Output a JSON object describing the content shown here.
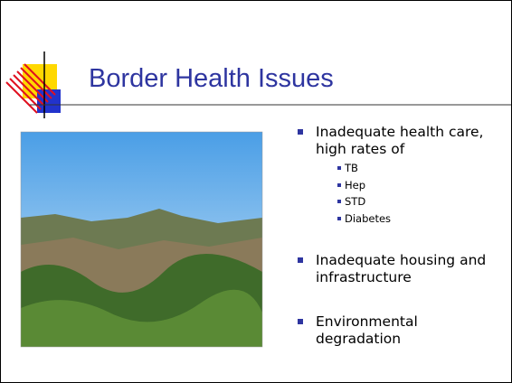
{
  "slide": {
    "title": "Border Health Issues",
    "bullets": [
      {
        "text": "Inadequate health care, high rates of",
        "sub": [
          "TB",
          "Hep",
          "STD",
          "Diabetes"
        ]
      },
      {
        "text": "Inadequate housing and infrastructure"
      },
      {
        "text": "Environmental degradation"
      }
    ]
  }
}
